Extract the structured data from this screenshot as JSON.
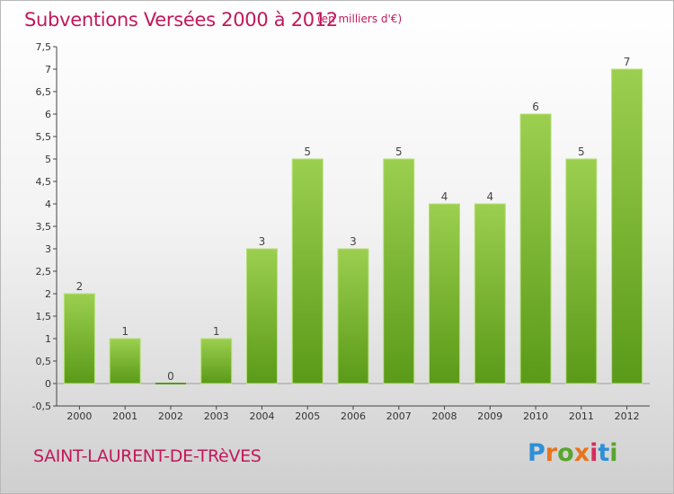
{
  "header": {
    "title": "Subventions Versées 2000 à 2012",
    "unit_note": "(en milliers d'€)"
  },
  "footer": {
    "town": "SAINT-LAURENT-DE-TRèVES",
    "brand_letters": [
      "P",
      "r",
      "o",
      "x",
      "i",
      "t",
      "i"
    ],
    "brand_colors": [
      "#2e8fd6",
      "#e8741c",
      "#59a52c",
      "#e8741c",
      "#d62c5c",
      "#2e8fd6",
      "#59a52c"
    ]
  },
  "chart_data": {
    "type": "bar",
    "title": "Subventions Versées 2000 à 2012",
    "subtitle": "(en milliers d'€)",
    "categories": [
      "2000",
      "2001",
      "2002",
      "2003",
      "2004",
      "2005",
      "2006",
      "2007",
      "2008",
      "2009",
      "2010",
      "2011",
      "2012"
    ],
    "values": [
      2,
      1,
      0,
      1,
      3,
      5,
      3,
      5,
      4,
      4,
      6,
      5,
      7
    ],
    "data_labels": [
      "2",
      "1",
      "0",
      "1",
      "3",
      "5",
      "3",
      "5",
      "4",
      "4",
      "6",
      "5",
      "7"
    ],
    "ylim": [
      -0.5,
      7.5
    ],
    "yticks": [
      -0.5,
      0,
      0.5,
      1,
      1.5,
      2,
      2.5,
      3,
      3.5,
      4,
      4.5,
      5,
      5.5,
      6,
      6.5,
      7,
      7.5
    ],
    "ytick_labels": [
      "-0,5",
      "0",
      "0,5",
      "1",
      "1,5",
      "2",
      "2,5",
      "3",
      "3,5",
      "4",
      "4,5",
      "5",
      "5,5",
      "6",
      "6,5",
      "7",
      "7,5"
    ],
    "grid": false,
    "colors": {
      "bar_top": "#9ccf4f",
      "bar_bottom": "#5a9a18",
      "axis": "#444444",
      "title": "#c2185b"
    }
  }
}
